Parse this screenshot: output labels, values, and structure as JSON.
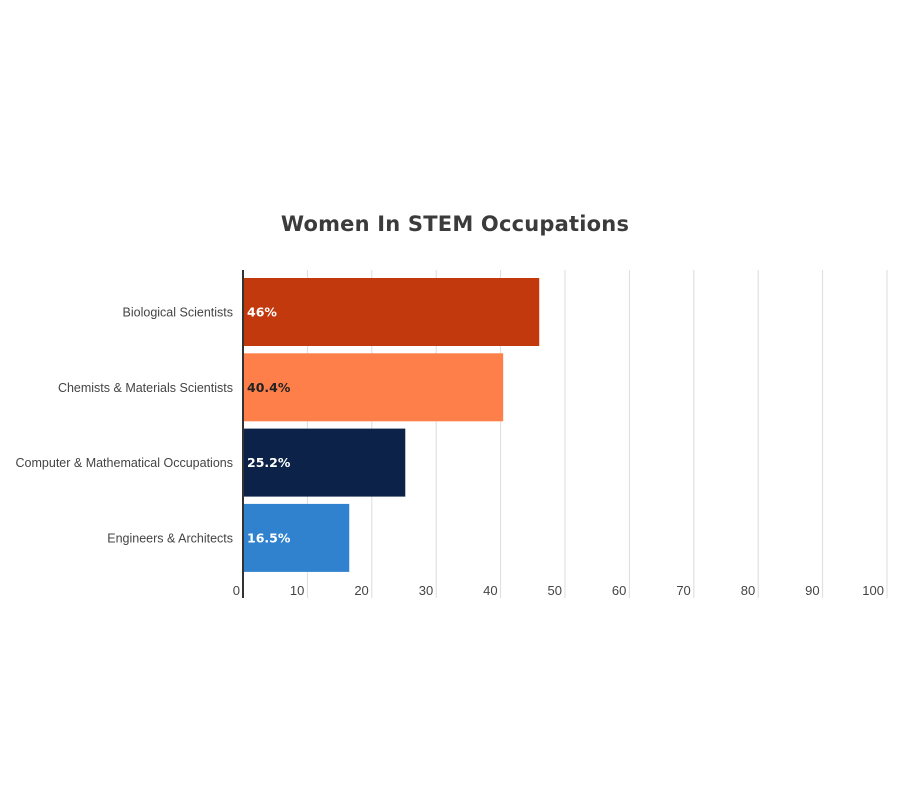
{
  "chart_data": {
    "type": "bar",
    "orientation": "horizontal",
    "title": "Women In STEM Occupations",
    "xlabel": "",
    "ylabel": "",
    "xlim": [
      0,
      100
    ],
    "x_ticks": [
      0,
      10,
      20,
      30,
      40,
      50,
      60,
      70,
      80,
      90,
      100
    ],
    "grid": true,
    "legend": "none",
    "categories": [
      "Biological Scientists",
      "Chemists & Materials Scientists",
      "Computer & Mathematical Occupations",
      "Engineers & Architects"
    ],
    "values": [
      46,
      40.4,
      25.2,
      16.5
    ],
    "data_labels": [
      "46%",
      "40.4%",
      "25.2%",
      "16.5%"
    ],
    "bar_colors": [
      "#c1390c",
      "#ff7f4a",
      "#0c2248",
      "#3182ce"
    ],
    "label_colors": [
      "#ffffff",
      "#222222",
      "#ffffff",
      "#ffffff"
    ]
  }
}
